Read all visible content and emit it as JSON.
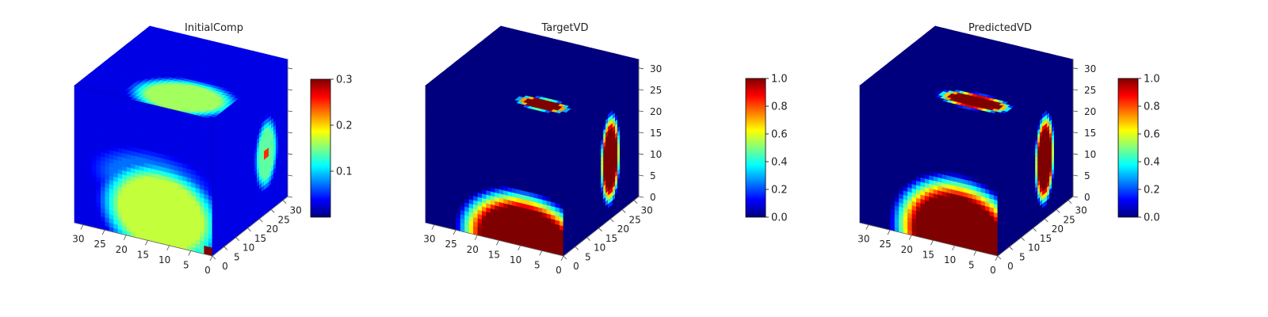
{
  "figure": {
    "colormap": "jet",
    "colormap_stops": [
      "#00007f",
      "#0000ff",
      "#0080ff",
      "#00ffff",
      "#80ff80",
      "#ffff00",
      "#ff8000",
      "#ff0000",
      "#7f0000"
    ],
    "background_color": "#ffffff",
    "pane_color": "#ededed"
  },
  "chart_data": [
    {
      "type": "heatmap",
      "subtype": "3d-voxel-cube",
      "title": "InitialComp",
      "axes": {
        "x_ticks": [
          "0",
          "5",
          "10",
          "15",
          "20",
          "25",
          "30"
        ],
        "y_ticks": [
          "0",
          "5",
          "10",
          "15",
          "20",
          "25",
          "30"
        ],
        "z_ticks": [],
        "range": [
          0,
          32
        ]
      },
      "colorbar": {
        "min": 0.0,
        "max": 0.3,
        "ticks": [
          "0.1",
          "0.2",
          "0.3"
        ],
        "tick_values": [
          0.1,
          0.2,
          0.3
        ]
      },
      "base_value": 0.03,
      "front_blobs": [
        {
          "cx": 12,
          "cz": 7,
          "rx": 12,
          "rz": 10,
          "value": 0.17
        },
        {
          "cx": 14,
          "cz": 14,
          "rx": 12,
          "rz": 6,
          "value": 0.07
        },
        {
          "cx": 1,
          "cz": 1,
          "rx": 1.5,
          "rz": 1.2,
          "value": 0.3
        }
      ],
      "top_blobs": [
        {
          "cx": 10,
          "cy": 6,
          "rx": 10,
          "ry": 7,
          "value": 0.16
        }
      ],
      "right_blobs": [
        {
          "cy": 23,
          "cz": 14,
          "rx": 4,
          "rz": 7,
          "value": 0.14
        },
        {
          "cy": 23,
          "cz": 14,
          "rx": 0.8,
          "rz": 0.8,
          "value": 0.3
        }
      ]
    },
    {
      "type": "heatmap",
      "subtype": "3d-voxel-cube",
      "title": "TargetVD",
      "axes": {
        "x_ticks": [
          "0",
          "5",
          "10",
          "15",
          "20",
          "25",
          "30"
        ],
        "y_ticks": [
          "0",
          "5",
          "10",
          "15",
          "20",
          "25",
          "30"
        ],
        "z_ticks": [
          "0",
          "5",
          "10",
          "15",
          "20",
          "25",
          "30"
        ],
        "range": [
          0,
          32
        ]
      },
      "colorbar": {
        "min": 0.0,
        "max": 1.0,
        "ticks": [
          "0.0",
          "0.2",
          "0.4",
          "0.6",
          "0.8",
          "1.0"
        ],
        "tick_values": [
          0.0,
          0.2,
          0.4,
          0.6,
          0.8,
          1.0
        ]
      },
      "base_value": 0.0,
      "front_blobs": [
        {
          "cx": 9,
          "cz": 1,
          "rx": 13,
          "rz": 10,
          "value": 1.0
        }
      ],
      "top_blobs": [
        {
          "cx": 7,
          "cy": 4,
          "rx": 5,
          "ry": 2.4,
          "value": 1.0
        }
      ],
      "right_blobs": [
        {
          "cy": 20,
          "cz": 14,
          "rx": 3.5,
          "rz": 9,
          "value": 1.0
        }
      ]
    },
    {
      "type": "heatmap",
      "subtype": "3d-voxel-cube",
      "title": "PredictedVD",
      "axes": {
        "x_ticks": [
          "0",
          "5",
          "10",
          "15",
          "20",
          "25",
          "30"
        ],
        "y_ticks": [
          "0",
          "5",
          "10",
          "15",
          "20",
          "25",
          "30"
        ],
        "z_ticks": [
          "0",
          "5",
          "10",
          "15",
          "20",
          "25",
          "30"
        ],
        "range": [
          0,
          32
        ]
      },
      "colorbar": {
        "min": 0.0,
        "max": 1.0,
        "ticks": [
          "0.0",
          "0.2",
          "0.4",
          "0.6",
          "0.8",
          "1.0"
        ],
        "tick_values": [
          0.0,
          0.2,
          0.4,
          0.6,
          0.8,
          1.0
        ]
      },
      "base_value": 0.0,
      "front_blobs": [
        {
          "cx": 9,
          "cz": 2,
          "rx": 13,
          "rz": 12,
          "value": 1.0
        }
      ],
      "top_blobs": [
        {
          "cx": 8,
          "cy": 5,
          "rx": 7,
          "ry": 3,
          "value": 1.0
        }
      ],
      "right_blobs": [
        {
          "cy": 20,
          "cz": 14,
          "rx": 3.5,
          "rz": 9,
          "value": 1.0
        }
      ]
    }
  ]
}
